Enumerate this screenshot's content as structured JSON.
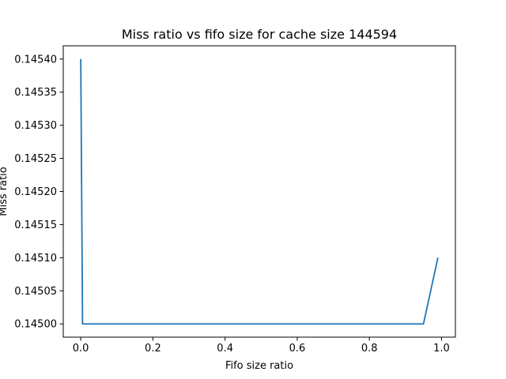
{
  "chart_data": {
    "type": "line",
    "title": "Miss ratio vs fifo size for cache size 144594",
    "xlabel": "Fifo size ratio",
    "ylabel": "Miss ratio",
    "xlim": [
      -0.0485,
      1.0385
    ],
    "ylim": [
      0.14498,
      0.14542
    ],
    "xticks": [
      0.0,
      0.2,
      0.4,
      0.6,
      0.8,
      1.0
    ],
    "xtick_labels": [
      "0.0",
      "0.2",
      "0.4",
      "0.6",
      "0.8",
      "1.0"
    ],
    "yticks": [
      0.145,
      0.14505,
      0.1451,
      0.14515,
      0.1452,
      0.14525,
      0.1453,
      0.14535,
      0.1454
    ],
    "ytick_labels": [
      "0.14500",
      "0.14505",
      "0.14510",
      "0.14515",
      "0.14520",
      "0.14525",
      "0.14530",
      "0.14535",
      "0.14540"
    ],
    "grid": false,
    "series": [
      {
        "color": "#1f77b4",
        "x": [
          0.0,
          0.005,
          0.05,
          0.1,
          0.15,
          0.2,
          0.25,
          0.3,
          0.35,
          0.4,
          0.45,
          0.5,
          0.55,
          0.6,
          0.65,
          0.7,
          0.75,
          0.8,
          0.85,
          0.9,
          0.95,
          0.99
        ],
        "y": [
          0.1454,
          0.145,
          0.145,
          0.145,
          0.145,
          0.145,
          0.145,
          0.145,
          0.145,
          0.145,
          0.145,
          0.145,
          0.145,
          0.145,
          0.145,
          0.145,
          0.145,
          0.145,
          0.145,
          0.145,
          0.145,
          0.1451
        ]
      }
    ]
  }
}
